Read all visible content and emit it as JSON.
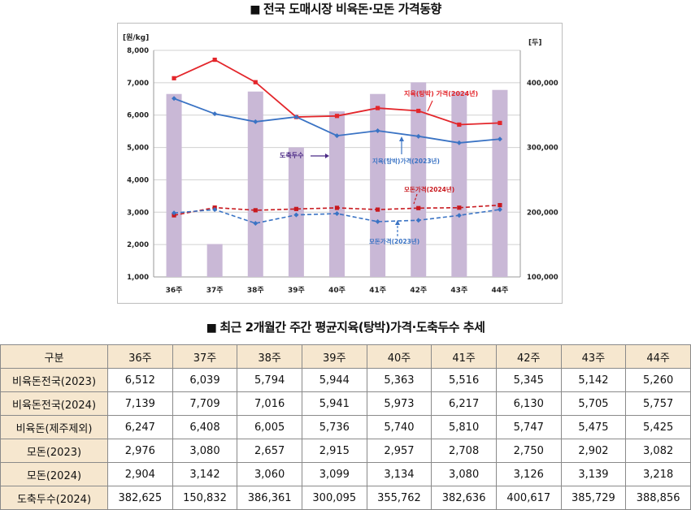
{
  "chart_title": "전국 도매시장 비육돈·모돈 가격동향",
  "table_title": "최근 2개월간 주간 평균지육(탕박)가격·도축두수 추세",
  "title_marker": "■",
  "chart_data": {
    "type": "bar+line",
    "categories": [
      "36주",
      "37주",
      "38주",
      "39주",
      "40주",
      "41주",
      "42주",
      "43주",
      "44주"
    ],
    "y_left_unit": "[원/kg]",
    "y_right_unit": "[두]",
    "ylim_left": [
      1000,
      8000
    ],
    "ylim_right": [
      100000,
      450000
    ],
    "y_left_ticks": [
      "1,000",
      "2,000",
      "3,000",
      "4,000",
      "5,000",
      "6,000",
      "7,000",
      "8,000"
    ],
    "y_right_ticks": [
      "100,000",
      "200,000",
      "300,000",
      "400,000"
    ],
    "bars": {
      "name": "도축두수",
      "axis": "right",
      "color": "#c9b8d6",
      "values": [
        382625,
        150832,
        386361,
        300095,
        355762,
        382636,
        400617,
        385729,
        388856
      ]
    },
    "series": [
      {
        "name": "지육(탕박) 가격(2024년)",
        "axis": "left",
        "color": "#e3262b",
        "style": "solid",
        "marker": "square",
        "values": [
          7139,
          7709,
          7016,
          5941,
          5973,
          6217,
          6130,
          5705,
          5757
        ]
      },
      {
        "name": "지육(탕박)가격(2023년)",
        "axis": "left",
        "color": "#3a73c4",
        "style": "solid",
        "marker": "diamond",
        "values": [
          6512,
          6039,
          5794,
          5944,
          5363,
          5516,
          5345,
          5142,
          5260
        ]
      },
      {
        "name": "모돈가격(2024년)",
        "axis": "left",
        "color": "#c8191f",
        "style": "dashed",
        "marker": "square",
        "values": [
          2904,
          3142,
          3060,
          3099,
          3134,
          3080,
          3126,
          3139,
          3218
        ]
      },
      {
        "name": "모돈가격(2023년)",
        "axis": "left",
        "color": "#3a73c4",
        "style": "dashed",
        "marker": "diamond",
        "values": [
          2976,
          3080,
          2657,
          2915,
          2957,
          2708,
          2750,
          2902,
          3082
        ]
      }
    ],
    "annotations": {
      "bars_label": "도축두수",
      "price_2024": "지육(탕박) 가격(2024년)",
      "price_2023": "지육(탕박)가격(2023년)",
      "sow_2024": "모돈가격(2024년)",
      "sow_2023": "모돈가격(2023년)"
    },
    "grid": true
  },
  "table": {
    "headers": [
      "구분",
      "36주",
      "37주",
      "38주",
      "39주",
      "40주",
      "41주",
      "42주",
      "43주",
      "44주"
    ],
    "rows": [
      [
        "비육돈전국(2023)",
        "6,512",
        "6,039",
        "5,794",
        "5,944",
        "5,363",
        "5,516",
        "5,345",
        "5,142",
        "5,260"
      ],
      [
        "비육돈전국(2024)",
        "7,139",
        "7,709",
        "7,016",
        "5,941",
        "5,973",
        "6,217",
        "6,130",
        "5,705",
        "5,757"
      ],
      [
        "비육돈(제주제외)",
        "6,247",
        "6,408",
        "6,005",
        "5,736",
        "5,740",
        "5,810",
        "5,747",
        "5,475",
        "5,425"
      ],
      [
        "모돈(2023)",
        "2,976",
        "3,080",
        "2,657",
        "2,915",
        "2,957",
        "2,708",
        "2,750",
        "2,902",
        "3,082"
      ],
      [
        "모돈(2024)",
        "2,904",
        "3,142",
        "3,060",
        "3,099",
        "3,134",
        "3,080",
        "3,126",
        "3,139",
        "3,218"
      ],
      [
        "도축두수(2024)",
        "382,625",
        "150,832",
        "386,361",
        "300,095",
        "355,762",
        "382,636",
        "400,617",
        "385,729",
        "388,856"
      ]
    ]
  }
}
